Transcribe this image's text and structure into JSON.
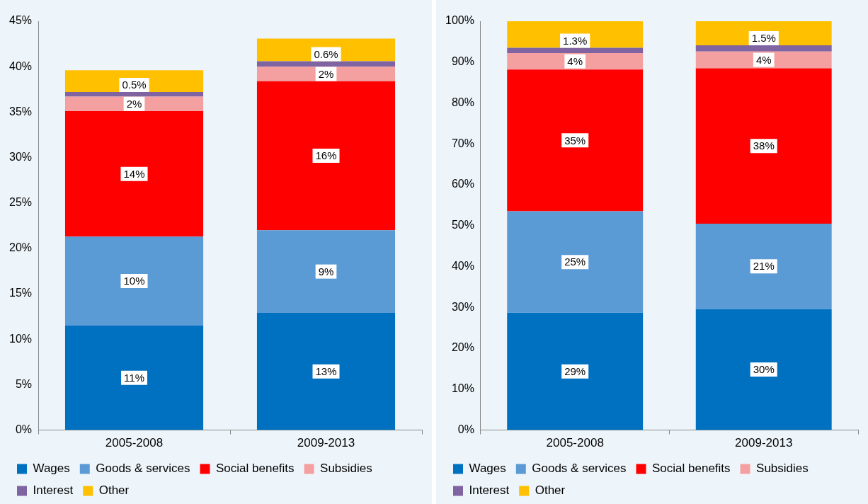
{
  "chart_data": [
    {
      "type": "bar",
      "stacked": true,
      "categories": [
        "2005-2008",
        "2009-2013"
      ],
      "ylim": [
        0,
        45
      ],
      "yticks": [
        {
          "value": 0,
          "label": "0%"
        },
        {
          "value": 5,
          "label": "5%"
        },
        {
          "value": 10,
          "label": "10%"
        },
        {
          "value": 15,
          "label": "15%"
        },
        {
          "value": 20,
          "label": "20%"
        },
        {
          "value": 25,
          "label": "25%"
        },
        {
          "value": 30,
          "label": "30%"
        },
        {
          "value": 35,
          "label": "35%"
        },
        {
          "value": 40,
          "label": "40%"
        },
        {
          "value": 45,
          "label": "45%"
        }
      ],
      "grid": false,
      "legend": "bottom",
      "series": [
        {
          "name": "Wages",
          "color": "#0070c0",
          "values": [
            11.5,
            12.9
          ],
          "value_labels": [
            "11%",
            "13%"
          ]
        },
        {
          "name": "Goods & services",
          "color": "#5b9bd5",
          "values": [
            9.8,
            9.1
          ],
          "value_labels": [
            "10%",
            "9%"
          ]
        },
        {
          "name": "Social benefits",
          "color": "#ff0000",
          "values": [
            13.8,
            16.4
          ],
          "value_labels": [
            "14%",
            "16%"
          ]
        },
        {
          "name": "Subsidies",
          "color": "#f4a0a0",
          "values": [
            1.6,
            1.6
          ],
          "value_labels": [
            "2%",
            "2%"
          ]
        },
        {
          "name": "Interest",
          "color": "#8064a2",
          "values": [
            0.5,
            0.6
          ],
          "value_labels": [
            "0.5%",
            "0.6%"
          ]
        },
        {
          "name": "Other",
          "color": "#ffc000",
          "values": [
            2.4,
            2.5
          ]
        }
      ]
    },
    {
      "type": "bar",
      "stacked": true,
      "categories": [
        "2005-2008",
        "2009-2013"
      ],
      "ylim": [
        0,
        100
      ],
      "yticks": [
        {
          "value": 0,
          "label": "0%"
        },
        {
          "value": 10,
          "label": "10%"
        },
        {
          "value": 20,
          "label": "20%"
        },
        {
          "value": 30,
          "label": "30%"
        },
        {
          "value": 40,
          "label": "40%"
        },
        {
          "value": 50,
          "label": "50%"
        },
        {
          "value": 60,
          "label": "60%"
        },
        {
          "value": 70,
          "label": "70%"
        },
        {
          "value": 80,
          "label": "80%"
        },
        {
          "value": 90,
          "label": "90%"
        },
        {
          "value": 100,
          "label": "100%"
        }
      ],
      "grid": false,
      "legend": "bottom",
      "series": [
        {
          "name": "Wages",
          "color": "#0070c0",
          "values": [
            28.7,
            29.6
          ],
          "value_labels": [
            "29%",
            "30%"
          ]
        },
        {
          "name": "Goods & services",
          "color": "#5b9bd5",
          "values": [
            24.8,
            20.9
          ],
          "value_labels": [
            "25%",
            "21%"
          ]
        },
        {
          "name": "Social benefits",
          "color": "#ff0000",
          "values": [
            34.7,
            38.0
          ],
          "value_labels": [
            "35%",
            "38%"
          ]
        },
        {
          "name": "Subsidies",
          "color": "#f4a0a0",
          "values": [
            4.0,
            4.1
          ],
          "value_labels": [
            "4%",
            "4%"
          ]
        },
        {
          "name": "Interest",
          "color": "#8064a2",
          "values": [
            1.3,
            1.5
          ],
          "value_labels": [
            "1.3%",
            "1.5%"
          ]
        },
        {
          "name": "Other",
          "color": "#ffc000",
          "values": [
            6.5,
            5.9
          ]
        }
      ]
    }
  ]
}
